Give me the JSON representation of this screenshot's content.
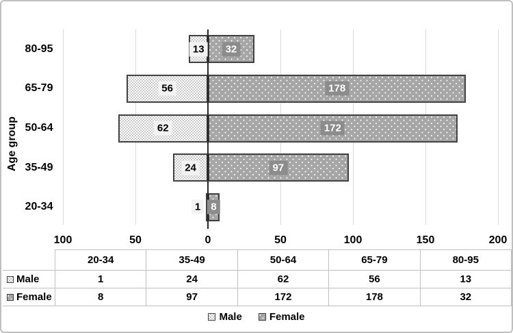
{
  "chart_data": {
    "type": "bar",
    "orientation": "horizontal-diverging",
    "title": "",
    "ylabel": "Age group",
    "xlabel": "",
    "categories": [
      "20-34",
      "35-49",
      "50-64",
      "65-79",
      "80-95"
    ],
    "row_order_top_to_bottom": [
      "80-95",
      "65-79",
      "50-64",
      "35-49",
      "20-34"
    ],
    "series": [
      {
        "name": "Male",
        "side": "left",
        "values": [
          1,
          24,
          62,
          56,
          13
        ]
      },
      {
        "name": "Female",
        "side": "right",
        "values": [
          8,
          97,
          172,
          178,
          32
        ]
      }
    ],
    "x_axis": {
      "min": -100,
      "max": 200,
      "ticks": [
        -100,
        -50,
        0,
        50,
        100,
        150,
        200
      ],
      "tick_labels": [
        "100",
        "50",
        "0",
        "50",
        "100",
        "150",
        "200"
      ]
    },
    "grid": true,
    "legend_position": "bottom",
    "data_table": {
      "columns": [
        "20-34",
        "35-49",
        "50-64",
        "65-79",
        "80-95"
      ],
      "rows": [
        {
          "label": "Male",
          "values": [
            "1",
            "24",
            "62",
            "56",
            "13"
          ]
        },
        {
          "label": "Female",
          "values": [
            "8",
            "97",
            "172",
            "178",
            "32"
          ]
        }
      ]
    }
  },
  "colors": {
    "male_fill": "#ffffff",
    "male_pattern": "#c9c9c9",
    "female_fill": "#a6a6a6",
    "female_dot": "#ffffff",
    "bar_border": "#404040",
    "gridline": "#d9d9d9",
    "axis_line": "#262626",
    "male_label_bg": "#f2f2f2",
    "male_label_text": "#000000",
    "female_label_bg": "#8c8c8c",
    "female_label_text": "#ffffff",
    "table_border": "#bfbfbf",
    "figure_border": "#bfbfbf",
    "text": "#000000"
  }
}
